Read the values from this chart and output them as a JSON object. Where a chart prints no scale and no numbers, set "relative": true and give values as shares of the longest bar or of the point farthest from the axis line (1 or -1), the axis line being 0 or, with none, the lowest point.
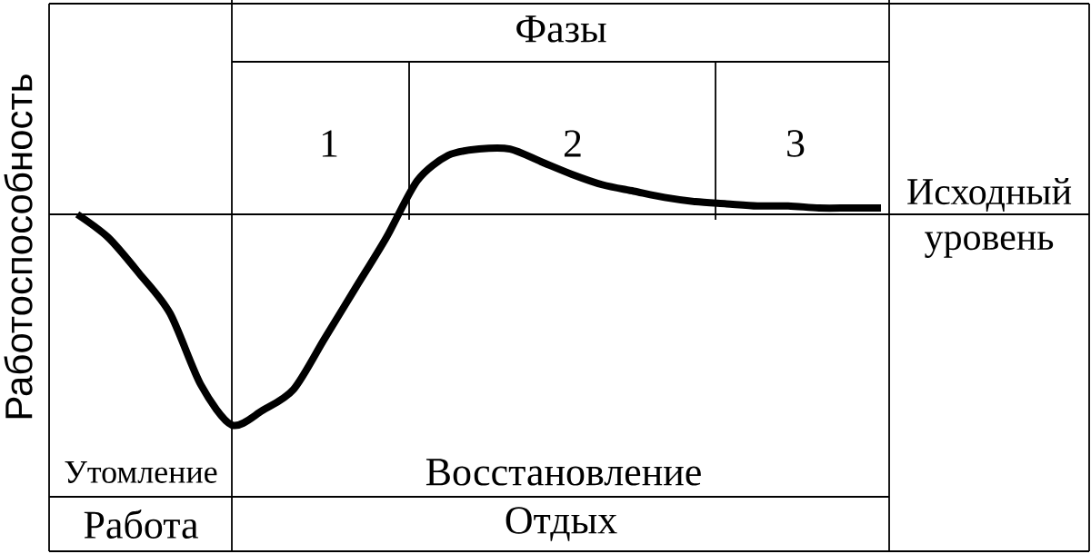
{
  "chart_data": {
    "type": "line",
    "relative": true,
    "ylabel": "Работоспособность",
    "categories": [
      null,
      null,
      null,
      null,
      null,
      null,
      null,
      null,
      null,
      null,
      null,
      null,
      null,
      null,
      null,
      null,
      null,
      null,
      null,
      null,
      null,
      null,
      null,
      null,
      null,
      null,
      null
    ],
    "series": [
      {
        "color": "#000000",
        "values": [
          0,
          -0.11,
          -0.28,
          -0.47,
          -0.81,
          -1,
          -0.93,
          -0.83,
          -0.59,
          -0.35,
          -0.11,
          0.16,
          0.28,
          0.31,
          0.31,
          0.25,
          0.19,
          0.14,
          0.11,
          0.08,
          0.06,
          0.05,
          0.04,
          0.04,
          0.03,
          0.03,
          0.03
        ]
      }
    ],
    "ref_lines": [
      {
        "axis": "y",
        "value": 0,
        "label": "Исходный уровень"
      }
    ],
    "annotations": [
      "Фазы",
      "1",
      "2",
      "3",
      "Утомление",
      "Восстановление",
      "Работа",
      "Отдых"
    ]
  }
}
